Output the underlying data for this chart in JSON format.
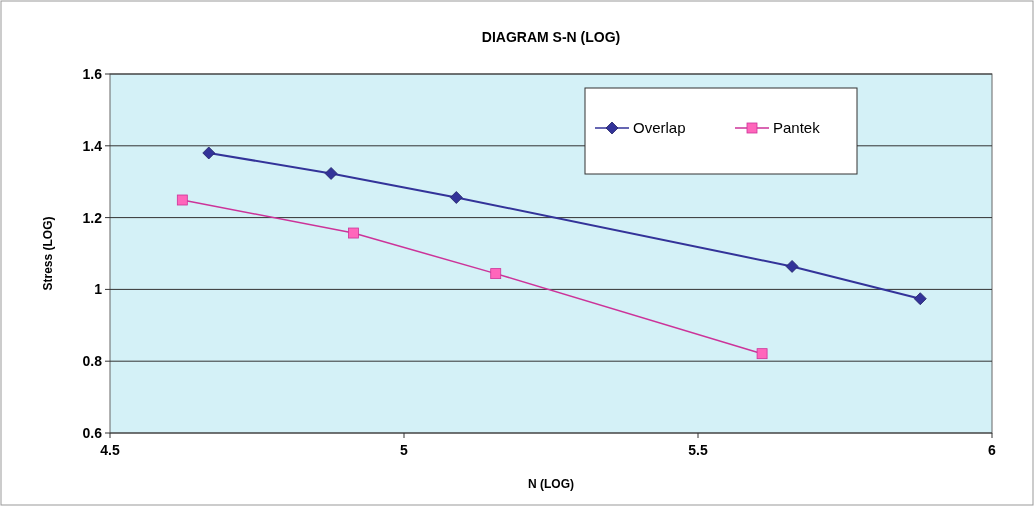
{
  "chart_data": {
    "type": "line",
    "title": "DIAGRAM S-N (LOG)",
    "xlabel": "N (LOG)",
    "ylabel": "Stress (LOG)",
    "xlim": [
      4.5,
      6
    ],
    "xticks": [
      4.5,
      5,
      5.5,
      6
    ],
    "ylim": [
      0.6,
      1.6
    ],
    "yticks": [
      0.6,
      0.8,
      1,
      1.2,
      1.4,
      1.6
    ],
    "grid": "y",
    "legend": "top right",
    "series": [
      {
        "name": "Overlap",
        "color": "#333399",
        "marker": "diamond",
        "x": [
          4.668,
          4.876,
          5.089,
          5.66,
          5.878
        ],
        "values": [
          1.38,
          1.323,
          1.256,
          1.064,
          0.974
        ]
      },
      {
        "name": "Pantek",
        "color": "#cc3399",
        "marker": "square",
        "x": [
          4.623,
          4.914,
          5.156,
          5.609
        ],
        "values": [
          1.249,
          1.157,
          1.044,
          0.821
        ]
      }
    ]
  }
}
